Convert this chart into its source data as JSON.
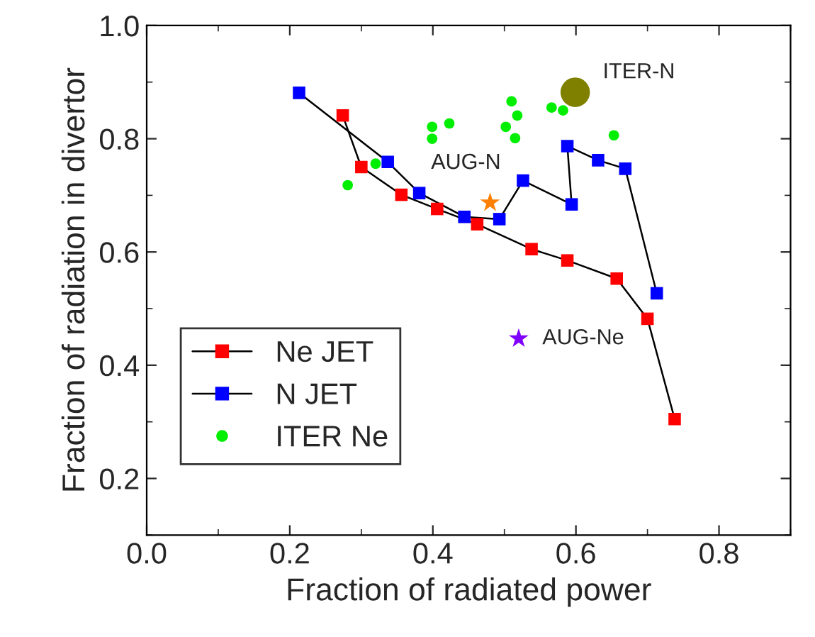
{
  "chart_data": {
    "type": "line",
    "xlabel": "Fraction of radiated power",
    "ylabel": "Fraction of radiation in divertor",
    "xlim": [
      0,
      0.9
    ],
    "ylim": [
      0.1,
      1.0
    ],
    "xticks": [
      {
        "value": 0,
        "label": "0.0"
      },
      0.2,
      0.4,
      0.6,
      0.8
    ],
    "yticks": [
      0.2,
      0.4,
      0.6,
      0.8,
      {
        "value": 1,
        "label": "1.0"
      }
    ],
    "legend": "bottom left",
    "grid": false,
    "series": [
      {
        "name": "Ne JET",
        "marker": "square",
        "color": "#ff0000",
        "x": [
          0.274,
          0.3,
          0.356,
          0.406,
          0.462,
          0.538,
          0.588,
          0.657,
          0.7,
          0.738
        ],
        "values": [
          0.841,
          0.75,
          0.701,
          0.676,
          0.649,
          0.605,
          0.585,
          0.553,
          0.482,
          0.305
        ]
      },
      {
        "name": "N JET",
        "marker": "square",
        "color": "#0000ff",
        "x": [
          0.213,
          0.337,
          0.381,
          0.444,
          0.493,
          0.526,
          0.594,
          0.588,
          0.631,
          0.669,
          0.713
        ],
        "values": [
          0.881,
          0.759,
          0.704,
          0.662,
          0.658,
          0.726,
          0.684,
          0.787,
          0.762,
          0.747,
          0.527
        ]
      },
      {
        "name": "ITER Ne",
        "type": "scatter",
        "marker": "circle",
        "color": "#00ee00",
        "x": [
          0.281,
          0.32,
          0.399,
          0.399,
          0.423,
          0.51,
          0.518,
          0.502,
          0.515,
          0.566,
          0.582,
          0.653
        ],
        "values": [
          0.718,
          0.756,
          0.821,
          0.8,
          0.827,
          0.866,
          0.841,
          0.821,
          0.801,
          0.855,
          0.85,
          0.806
        ]
      },
      {
        "type": "scatter",
        "marker": "circle",
        "color": "#808000",
        "x": [
          0.599
        ],
        "values": [
          0.882
        ],
        "sizes": [
          1
        ]
      },
      {
        "type": "scatter",
        "marker": "star",
        "color": "#ff8000",
        "x": [
          0.48
        ],
        "values": [
          0.687
        ]
      },
      {
        "type": "scatter",
        "marker": "star",
        "color": "#8000ff",
        "x": [
          0.52
        ],
        "values": [
          0.447
        ]
      }
    ],
    "annotations": [
      {
        "text": "ITER-N",
        "x": 0.599,
        "y": 0.882
      },
      {
        "text": "AUG-N",
        "x": 0.48,
        "y": 0.687
      },
      {
        "text": "AUG-Ne",
        "x": 0.52,
        "y": 0.447
      }
    ]
  }
}
